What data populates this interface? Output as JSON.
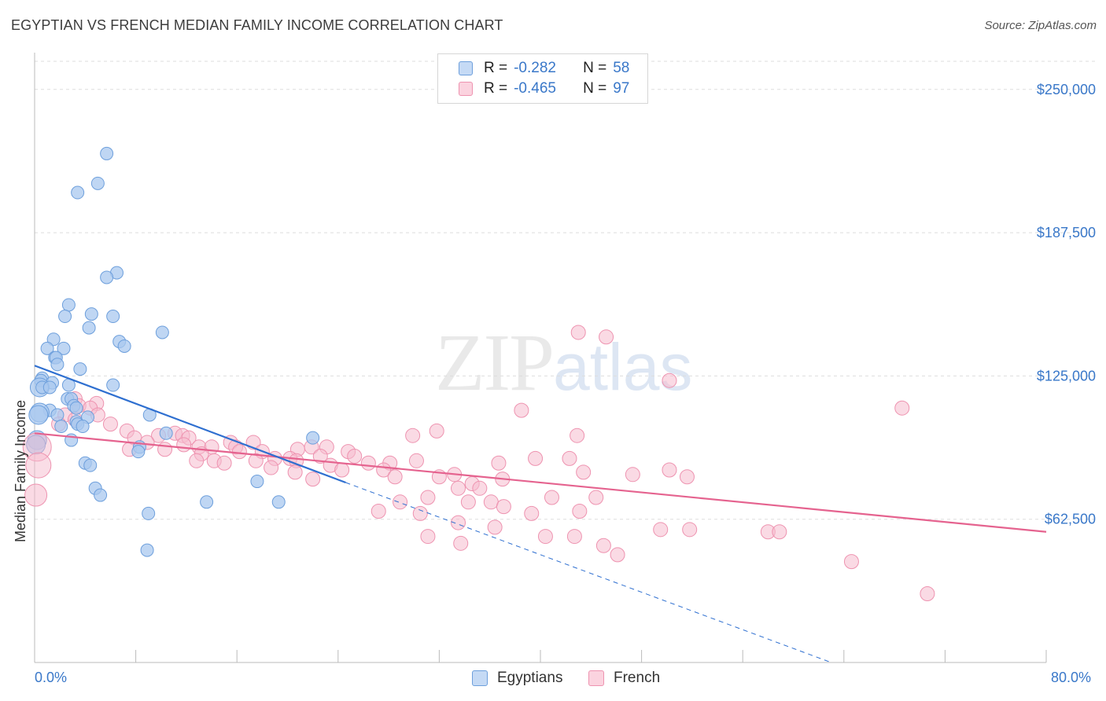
{
  "title": "EGYPTIAN VS FRENCH MEDIAN FAMILY INCOME CORRELATION CHART",
  "source": "Source: ZipAtlas.com",
  "watermark": {
    "zip": "ZIP",
    "atlas": "atlas"
  },
  "colors": {
    "egyptians_fill": "#a9c8ef",
    "egyptians_stroke": "#6d9fdc",
    "egyptians_line": "#2e6fd0",
    "french_fill": "#f6bccd",
    "french_stroke": "#ee93b0",
    "french_line": "#e5638f",
    "value_text": "#3a78c9",
    "grid": "#dddddd"
  },
  "legend": {
    "rows": [
      {
        "r_label": "R =",
        "r_value": "-0.282",
        "n_label": "N =",
        "n_value": "58"
      },
      {
        "r_label": "R =",
        "r_value": "-0.465",
        "n_label": "N =",
        "n_value": "97"
      }
    ]
  },
  "bottom_legend": {
    "egyptians": "Egyptians",
    "french": "French"
  },
  "chart_data": {
    "type": "scatter",
    "title": "EGYPTIAN VS FRENCH MEDIAN FAMILY INCOME CORRELATION CHART",
    "xlabel": "",
    "ylabel": "Median Family Income",
    "xlim": [
      0,
      80
    ],
    "ylim": [
      0,
      265000
    ],
    "x_tick_labels": [
      "0.0%",
      "80.0%"
    ],
    "y_ticks": [
      62500,
      125000,
      187500,
      250000
    ],
    "y_tick_labels": [
      "$62,500",
      "$125,000",
      "$187,500",
      "$250,000"
    ],
    "grid": true,
    "legend_position": "top-center",
    "series": [
      {
        "name": "Egyptians",
        "R": -0.282,
        "N": 58,
        "trend": {
          "x": [
            0,
            24.6
          ],
          "y": [
            129500,
            78500
          ],
          "dashed_extension_to": [
            63,
            0
          ]
        },
        "points": [
          [
            5.7,
            222000
          ],
          [
            5.0,
            209000
          ],
          [
            3.4,
            205000
          ],
          [
            6.5,
            170000
          ],
          [
            5.7,
            168000
          ],
          [
            2.7,
            156000
          ],
          [
            4.5,
            152000
          ],
          [
            2.4,
            151000
          ],
          [
            6.2,
            151000
          ],
          [
            4.3,
            146000
          ],
          [
            10.1,
            144000
          ],
          [
            1.5,
            141000
          ],
          [
            6.7,
            140000
          ],
          [
            7.1,
            138000
          ],
          [
            1.0,
            137000
          ],
          [
            2.3,
            137000
          ],
          [
            1.6,
            133000
          ],
          [
            1.7,
            133000
          ],
          [
            1.8,
            130000
          ],
          [
            3.6,
            128000
          ],
          [
            0.6,
            124000
          ],
          [
            0.5,
            123000
          ],
          [
            1.4,
            122000
          ],
          [
            2.7,
            121000
          ],
          [
            6.2,
            121000
          ],
          [
            0.4,
            120000
          ],
          [
            0.6,
            120000
          ],
          [
            1.2,
            120000
          ],
          [
            2.6,
            115000
          ],
          [
            2.9,
            115000
          ],
          [
            3.1,
            112000
          ],
          [
            3.3,
            111000
          ],
          [
            1.2,
            110000
          ],
          [
            0.4,
            109000
          ],
          [
            0.3,
            108000
          ],
          [
            1.8,
            108000
          ],
          [
            9.1,
            108000
          ],
          [
            4.2,
            107000
          ],
          [
            3.3,
            105000
          ],
          [
            3.4,
            104000
          ],
          [
            2.1,
            103000
          ],
          [
            3.8,
            103000
          ],
          [
            10.4,
            100000
          ],
          [
            22.0,
            98000
          ],
          [
            2.9,
            97000
          ],
          [
            0.2,
            97000
          ],
          [
            8.3,
            94000
          ],
          [
            8.2,
            92000
          ],
          [
            4.0,
            87000
          ],
          [
            4.4,
            86000
          ],
          [
            17.6,
            79000
          ],
          [
            4.8,
            76000
          ],
          [
            5.2,
            73000
          ],
          [
            13.6,
            70000
          ],
          [
            19.3,
            70000
          ],
          [
            9.0,
            65000
          ],
          [
            8.9,
            49000
          ],
          [
            0.1,
            95000
          ]
        ]
      },
      {
        "name": "French",
        "R": -0.465,
        "N": 97,
        "trend": {
          "x": [
            0,
            80
          ],
          "y": [
            100000,
            57000
          ]
        },
        "points": [
          [
            43.0,
            144000
          ],
          [
            45.2,
            142000
          ],
          [
            50.2,
            123000
          ],
          [
            68.6,
            111000
          ],
          [
            38.5,
            110000
          ],
          [
            3.2,
            115000
          ],
          [
            4.9,
            113000
          ],
          [
            3.5,
            112000
          ],
          [
            4.4,
            111000
          ],
          [
            5.0,
            108000
          ],
          [
            2.4,
            108000
          ],
          [
            3.2,
            106000
          ],
          [
            1.9,
            104000
          ],
          [
            6.0,
            104000
          ],
          [
            7.3,
            101000
          ],
          [
            11.1,
            100000
          ],
          [
            31.8,
            101000
          ],
          [
            29.9,
            99000
          ],
          [
            42.9,
            99000
          ],
          [
            11.7,
            99000
          ],
          [
            7.9,
            98000
          ],
          [
            12.2,
            98000
          ],
          [
            9.8,
            99000
          ],
          [
            8.9,
            96000
          ],
          [
            15.5,
            96000
          ],
          [
            17.3,
            96000
          ],
          [
            11.8,
            95000
          ],
          [
            13.0,
            94000
          ],
          [
            14.0,
            94000
          ],
          [
            15.9,
            94000
          ],
          [
            21.9,
            94000
          ],
          [
            23.1,
            94000
          ],
          [
            7.5,
            93000
          ],
          [
            10.3,
            93000
          ],
          [
            20.8,
            93000
          ],
          [
            24.8,
            92000
          ],
          [
            16.2,
            92000
          ],
          [
            18.0,
            92000
          ],
          [
            13.2,
            91000
          ],
          [
            22.6,
            90000
          ],
          [
            25.3,
            90000
          ],
          [
            19.0,
            89000
          ],
          [
            20.2,
            89000
          ],
          [
            12.8,
            88000
          ],
          [
            14.2,
            88000
          ],
          [
            17.5,
            88000
          ],
          [
            20.7,
            88000
          ],
          [
            30.2,
            88000
          ],
          [
            26.4,
            87000
          ],
          [
            28.1,
            87000
          ],
          [
            15.0,
            87000
          ],
          [
            23.4,
            86000
          ],
          [
            39.6,
            89000
          ],
          [
            42.3,
            89000
          ],
          [
            36.7,
            87000
          ],
          [
            18.7,
            85000
          ],
          [
            24.3,
            84000
          ],
          [
            27.6,
            84000
          ],
          [
            50.2,
            84000
          ],
          [
            47.3,
            82000
          ],
          [
            51.6,
            81000
          ],
          [
            20.6,
            83000
          ],
          [
            22.0,
            80000
          ],
          [
            32.0,
            81000
          ],
          [
            37.0,
            80000
          ],
          [
            28.5,
            81000
          ],
          [
            33.2,
            82000
          ],
          [
            34.6,
            78000
          ],
          [
            35.2,
            76000
          ],
          [
            33.5,
            76000
          ],
          [
            43.4,
            83000
          ],
          [
            31.1,
            72000
          ],
          [
            40.9,
            72000
          ],
          [
            44.4,
            72000
          ],
          [
            28.9,
            70000
          ],
          [
            36.1,
            70000
          ],
          [
            34.3,
            70000
          ],
          [
            37.1,
            68000
          ],
          [
            39.3,
            65000
          ],
          [
            43.1,
            66000
          ],
          [
            27.2,
            66000
          ],
          [
            30.5,
            65000
          ],
          [
            49.5,
            58000
          ],
          [
            36.4,
            59000
          ],
          [
            33.5,
            61000
          ],
          [
            40.4,
            55000
          ],
          [
            42.7,
            55000
          ],
          [
            51.8,
            58000
          ],
          [
            58.0,
            57000
          ],
          [
            58.9,
            57000
          ],
          [
            31.1,
            55000
          ],
          [
            33.7,
            52000
          ],
          [
            45.0,
            51000
          ],
          [
            46.1,
            47000
          ],
          [
            64.6,
            44000
          ],
          [
            70.6,
            30000
          ],
          [
            0.1,
            73000
          ]
        ]
      }
    ]
  }
}
